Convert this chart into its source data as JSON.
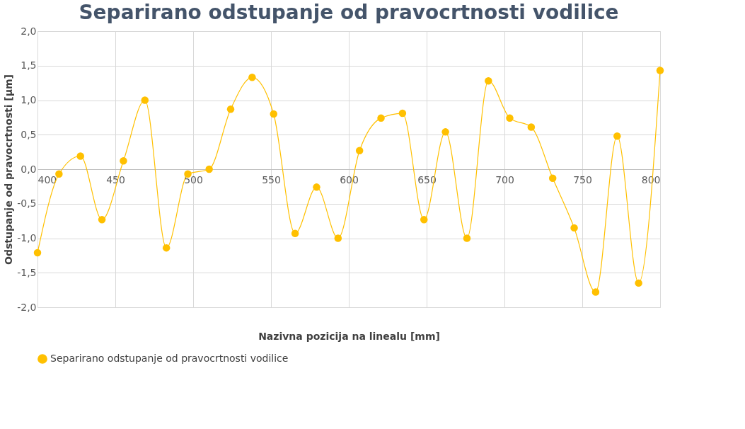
{
  "chart_data": {
    "type": "line",
    "title": "Separirano odstupanje od pravocrtnosti vodilice",
    "xlabel": "Nazivna pozicija na linealu [mm]",
    "ylabel": "Odstupanje od pravocrtnosti [µm]",
    "x": [
      400,
      413.8,
      427.6,
      441.4,
      455.2,
      469,
      482.8,
      496.6,
      510.3,
      524.1,
      537.9,
      551.7,
      565.5,
      579.3,
      593.1,
      606.9,
      620.7,
      634.5,
      648.3,
      662.1,
      675.9,
      689.7,
      703.4,
      717.2,
      731,
      744.8,
      758.6,
      772.4,
      786.2,
      800
    ],
    "series": [
      {
        "name": "Separirano odstupanje od pravocrtnosti vodilice",
        "color": "#ffc000",
        "values": [
          -1.21,
          -0.07,
          0.19,
          -0.73,
          0.12,
          1.0,
          -1.14,
          -0.07,
          0.0,
          0.87,
          1.33,
          0.8,
          -0.93,
          -0.26,
          -1.0,
          0.27,
          0.74,
          0.81,
          -0.73,
          0.54,
          -1.0,
          1.28,
          0.74,
          0.61,
          -0.13,
          -0.85,
          -1.78,
          0.48,
          -1.65,
          1.43
        ]
      }
    ],
    "xlim": [
      400,
      800
    ],
    "xticks": [
      400,
      450,
      500,
      550,
      600,
      650,
      700,
      750,
      800
    ],
    "ylim": [
      -2,
      2
    ],
    "yticks": [
      {
        "value": -2,
        "label": "-2,0"
      },
      {
        "value": -1.5,
        "label": "-1,5"
      },
      {
        "value": -1,
        "label": "-1,0"
      },
      {
        "value": -0.5,
        "label": "-0,5"
      },
      {
        "value": 0,
        "label": "0,0"
      },
      {
        "value": 0.5,
        "label": "0,5"
      },
      {
        "value": 1,
        "label": "1,0"
      },
      {
        "value": 1.5,
        "label": "1,5"
      },
      {
        "value": 2,
        "label": "2,0"
      }
    ],
    "grid": true,
    "legend": "bottom",
    "marker": "circle",
    "line_style": "solid"
  }
}
